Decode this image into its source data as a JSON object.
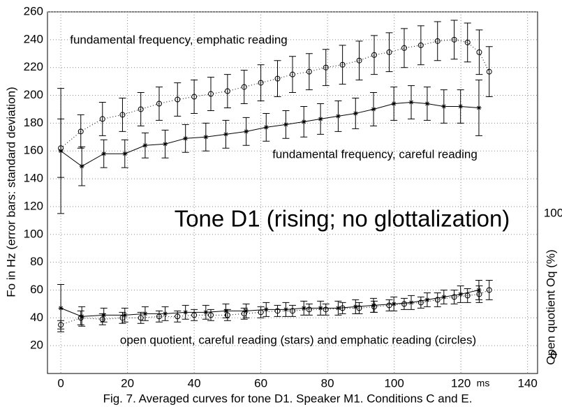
{
  "chart_data": {
    "type": "line",
    "title": "Tone D1 (rising; no glottalization)",
    "y_label": "Fo in Hz (error bars: standard deviation)",
    "y2_label": "Open quotient Oq (%)",
    "x_unit": "ms",
    "caption": "Fig. 7. Averaged curves for tone D1. Speaker M1. Conditions C and E.",
    "annotations": [
      "fundamental frequency, emphatic reading",
      "fundamental frequency, careful reading",
      "open quotient, careful reading (stars) and emphatic reading (circles)"
    ],
    "xlim": [
      -4,
      143
    ],
    "xticks": [
      0,
      20,
      40,
      60,
      80,
      100,
      120,
      140
    ],
    "ylim": [
      0,
      260
    ],
    "yticks": [
      20,
      40,
      60,
      80,
      100,
      120,
      140,
      160,
      180,
      200,
      220,
      240,
      260
    ],
    "y2lim": [
      -12.4,
      241.6
    ],
    "y2ticks": [
      0,
      100
    ],
    "grid": true,
    "series": [
      {
        "color": "#000000",
        "linestyle": "dotted",
        "marker": "circle",
        "x": [
          0,
          6,
          12.5,
          18.5,
          24,
          29.5,
          35,
          40,
          45,
          50,
          55,
          60,
          65,
          69.5,
          74.5,
          79.5,
          84.5,
          89.5,
          94,
          98.5,
          103,
          108,
          113,
          118,
          122,
          125.5,
          128.5
        ],
        "values": [
          162,
          174,
          183,
          186,
          190,
          194,
          197,
          199,
          201,
          203,
          206,
          209,
          212,
          215,
          217,
          220,
          222,
          225,
          229,
          231,
          234,
          236,
          239,
          240,
          238,
          231,
          217
        ],
        "errors": [
          21,
          12,
          12,
          12,
          12,
          12,
          12,
          12,
          12,
          12,
          12,
          13,
          13,
          13,
          13,
          13,
          14,
          14,
          14,
          14,
          14,
          14,
          14,
          14,
          14,
          16,
          18
        ]
      },
      {
        "color": "#000000",
        "linestyle": "solid",
        "marker": "star",
        "x": [
          0,
          6.3,
          12.9,
          19.2,
          25.3,
          31.3,
          37.4,
          43.5,
          49.5,
          55.6,
          61.6,
          67.5,
          72.9,
          77.9,
          83.2,
          88.4,
          93.8,
          99.9,
          105.1,
          109.9,
          114.9,
          119.9,
          125.4
        ],
        "values": [
          160,
          149,
          158,
          158,
          164,
          165,
          169,
          170,
          172,
          174,
          177,
          179,
          181,
          183,
          185,
          187,
          190,
          194,
          195,
          194,
          192,
          192,
          191
        ],
        "errors": [
          45,
          14,
          10,
          10,
          9,
          10,
          10,
          10,
          10,
          10,
          10,
          10,
          11,
          11,
          11,
          11,
          12,
          12,
          12,
          12,
          12,
          12,
          20
        ]
      },
      {
        "color": "#000000",
        "linestyle": "solid",
        "marker": "star",
        "x": [
          0,
          6.3,
          12.9,
          19.2,
          25.3,
          31.3,
          37.4,
          43.5,
          49.5,
          55.6,
          61.6,
          67.5,
          72.9,
          77.9,
          83.2,
          88.4,
          93.8,
          99.9,
          105.1,
          109.9,
          114.9,
          119.9,
          125.4
        ],
        "values": [
          47,
          41,
          42,
          42,
          43,
          43,
          44,
          44,
          45,
          45,
          46,
          46,
          47,
          47,
          47,
          48,
          49,
          50,
          51,
          53,
          55,
          57,
          60
        ],
        "errors": [
          17,
          7,
          5,
          5,
          5,
          5,
          5,
          5,
          5,
          5,
          5,
          5,
          5,
          5,
          5,
          5,
          5,
          5,
          5,
          5,
          5,
          6,
          7
        ]
      },
      {
        "color": "#000000",
        "linestyle": "dotted",
        "marker": "circle",
        "x": [
          0,
          6,
          12.5,
          18.5,
          24,
          29.5,
          35,
          40,
          45,
          50,
          55,
          60,
          65,
          69.5,
          74.5,
          79.5,
          84.5,
          89.5,
          94,
          98.5,
          103,
          108,
          113,
          118,
          122,
          125.5,
          128.5
        ],
        "values": [
          35,
          40,
          39,
          40,
          40,
          41,
          41,
          42,
          42,
          42,
          43,
          44,
          45,
          45,
          46,
          46,
          47,
          47,
          48,
          49,
          50,
          51,
          53,
          55,
          56,
          57,
          60
        ],
        "errors": [
          3,
          5,
          4,
          4,
          4,
          4,
          4,
          4,
          4,
          4,
          4,
          4,
          4,
          4,
          4,
          4,
          4,
          4,
          4,
          4,
          4,
          4,
          5,
          5,
          5,
          6,
          7
        ]
      }
    ]
  }
}
